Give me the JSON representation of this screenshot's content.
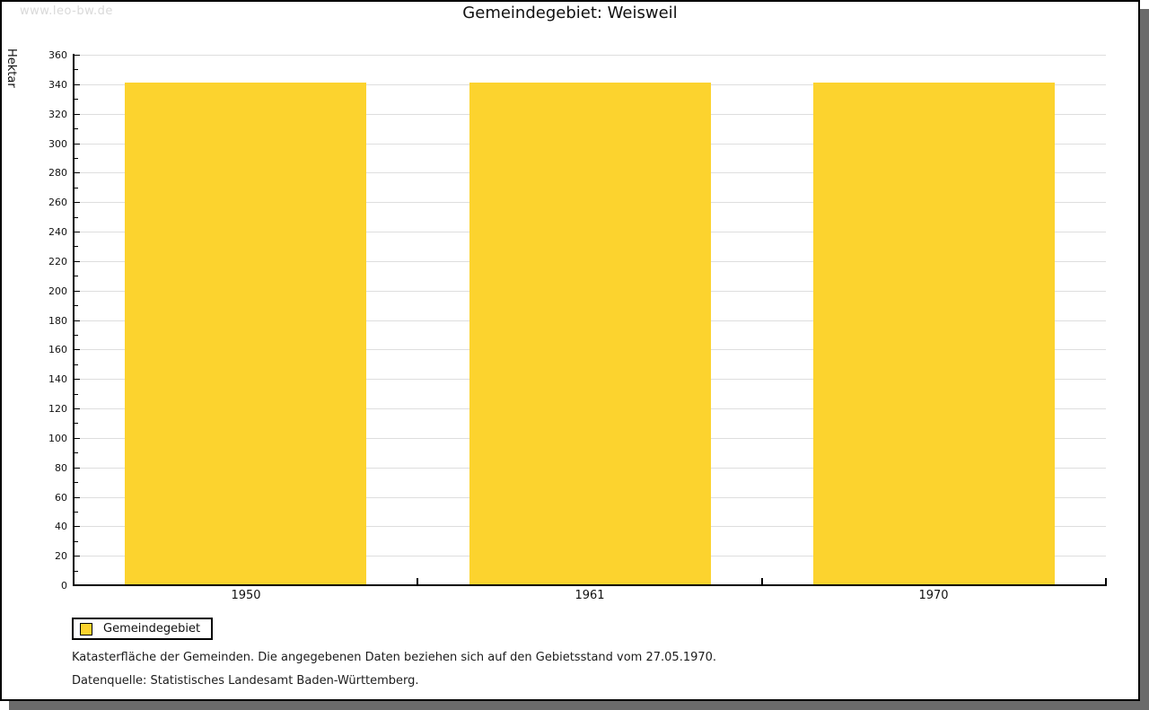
{
  "watermark": "www.leo-bw.de",
  "chart_data": {
    "type": "bar",
    "title": "Gemeindegebiet: Weisweil",
    "ylabel": "Hektar",
    "xlabel": "",
    "categories": [
      "1950",
      "1961",
      "1970"
    ],
    "series": [
      {
        "name": "Gemeindegebiet",
        "values": [
          341,
          341,
          341
        ]
      }
    ],
    "ylim": [
      0,
      360
    ],
    "ytick_major_step": 20,
    "ytick_minor_step": 10,
    "grid": true,
    "legend_position": "bottom-left"
  },
  "legend": {
    "items": [
      {
        "label": "Gemeindegebiet"
      }
    ]
  },
  "footnotes": [
    "Katasterfläche der Gemeinden. Die angegebenen Daten beziehen sich auf den Gebietsstand vom 27.05.1970.",
    "Datenquelle: Statistisches Landesamt Baden-Württemberg."
  ],
  "colors": {
    "bar": "#fcd32e",
    "gridline": "#dedede",
    "axis": "#000000",
    "watermark": "#d9d9d9",
    "shadow": "#6b6b6b",
    "background": "#ffffff"
  }
}
